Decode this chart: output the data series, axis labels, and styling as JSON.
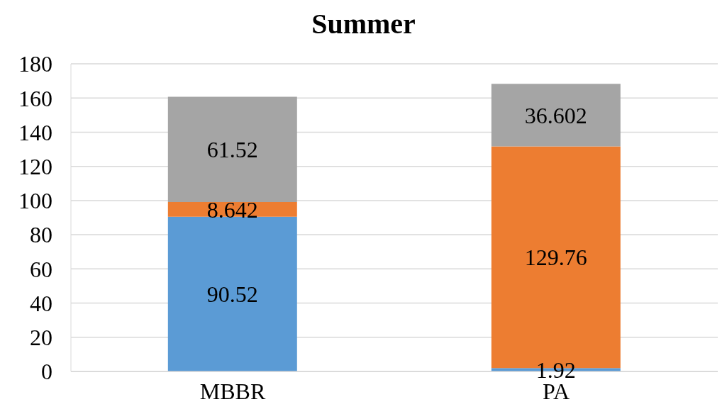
{
  "chart_data": {
    "type": "bar",
    "title": "Summer",
    "categories": [
      "MBBR",
      "PA"
    ],
    "stacked": true,
    "series": [
      {
        "color": "#5b9bd5",
        "values": [
          90.52,
          1.92
        ]
      },
      {
        "color": "#ed7d31",
        "values": [
          8.642,
          129.76
        ]
      },
      {
        "color": "#a5a5a5",
        "values": [
          61.52,
          36.602
        ]
      }
    ],
    "ylim": [
      0,
      180
    ],
    "yticks": [
      0,
      20,
      40,
      60,
      80,
      100,
      120,
      140,
      160,
      180
    ],
    "grid": "y",
    "data_labels": true,
    "legend": false
  }
}
